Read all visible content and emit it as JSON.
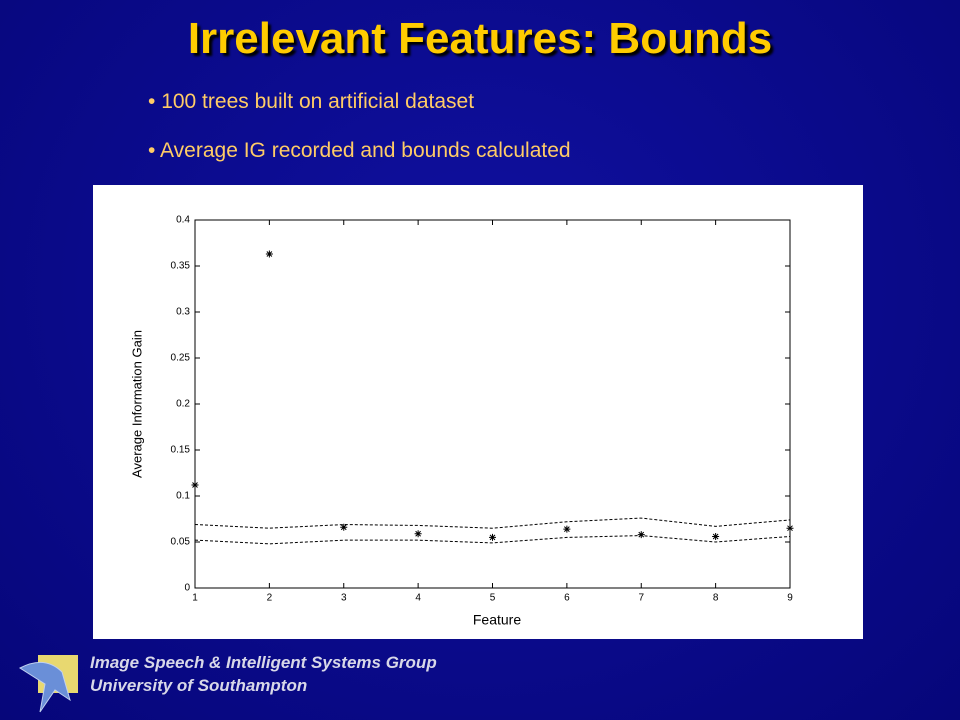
{
  "slide": {
    "title": "Irrelevant Features: Bounds",
    "bullets": [
      "100 trees built on artificial dataset",
      "Average IG recorded and bounds calculated"
    ],
    "footer": [
      "Image Speech & Intelligent Systems Group",
      "University of Southampton"
    ]
  },
  "chart_data": {
    "type": "scatter",
    "x_label": "Feature",
    "y_label": "Average Information Gain",
    "x": [
      1,
      2,
      3,
      4,
      5,
      6,
      7,
      8,
      9
    ],
    "series": [
      {
        "color": "#000000",
        "marker": "star",
        "values": [
          0.112,
          0.363,
          0.066,
          0.059,
          0.055,
          0.064,
          0.058,
          0.056,
          0.065
        ]
      },
      {
        "color": "#000000",
        "marker": "dashed-line",
        "values": [
          0.069,
          0.065,
          0.069,
          0.068,
          0.065,
          0.072,
          0.076,
          0.067,
          0.074
        ]
      },
      {
        "color": "#000000",
        "marker": "dashed-line",
        "values": [
          0.052,
          0.048,
          0.052,
          0.052,
          0.049,
          0.055,
          0.057,
          0.05,
          0.056
        ]
      }
    ],
    "xlim": [
      1,
      9
    ],
    "xticks": [
      1,
      2,
      3,
      4,
      5,
      6,
      7,
      8,
      9
    ],
    "ylim": [
      0,
      0.4
    ],
    "yticks": [
      0,
      0.05,
      0.1,
      0.15,
      0.2,
      0.25,
      0.3,
      0.35,
      0.4
    ]
  }
}
